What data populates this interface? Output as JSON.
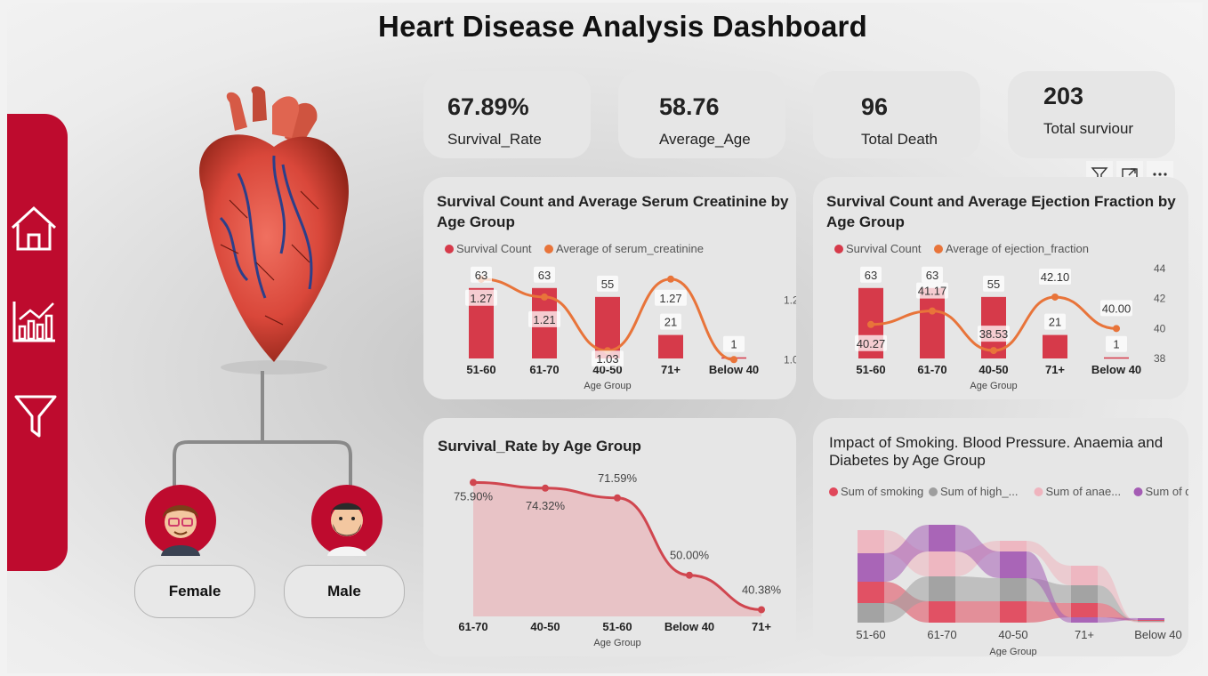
{
  "header": {
    "title": "Heart Disease Analysis Dashboard"
  },
  "sidebar": {
    "items": [
      {
        "icon": "home-icon"
      },
      {
        "icon": "bar-chart-icon"
      },
      {
        "icon": "filter-icon"
      }
    ]
  },
  "kpis": [
    {
      "value": "67.89%",
      "label": "Survival_Rate"
    },
    {
      "value": "58.76",
      "label": "Average_Age"
    },
    {
      "value": "96",
      "label": "Total Death"
    },
    {
      "value": "203",
      "label": "Total surviour"
    }
  ],
  "gender": {
    "female_label": "Female",
    "male_label": "Male"
  },
  "visual_toolbar": {
    "icons": [
      "filter-icon",
      "focus-mode-icon",
      "more-options-icon"
    ]
  },
  "colors": {
    "brand": "#be0b2e",
    "bar": "#d63a4a",
    "line": "#e8743a",
    "card": "#e6e6e6"
  },
  "chart_data": [
    {
      "type": "bar",
      "title": "Survival Count and Average Serum Creatinine by Age Group",
      "xlabel": "Age Group",
      "categories": [
        "51-60",
        "61-70",
        "40-50",
        "71+",
        "Below 40"
      ],
      "series": [
        {
          "name": "Survival Count",
          "type": "bar",
          "values": [
            63,
            63,
            55,
            21,
            1
          ],
          "color": "#d63a4a"
        },
        {
          "name": "Average of serum_creatinine",
          "type": "line",
          "values": [
            1.27,
            1.21,
            1.03,
            1.27,
            1.0
          ],
          "labels": [
            "1.27",
            "1.21",
            "1.03",
            "1.27",
            ""
          ],
          "color": "#e8743a"
        }
      ],
      "y2_ticks": [
        "1.2",
        "1.0"
      ],
      "legend": "top-left"
    },
    {
      "type": "bar",
      "title": "Survival Count and Average Ejection Fraction by Age Group",
      "xlabel": "Age Group",
      "categories": [
        "51-60",
        "61-70",
        "40-50",
        "71+",
        "Below 40"
      ],
      "series": [
        {
          "name": "Survival Count",
          "type": "bar",
          "values": [
            63,
            63,
            55,
            21,
            1
          ],
          "color": "#d63a4a"
        },
        {
          "name": "Average of ejection_fraction",
          "type": "line",
          "values": [
            40.27,
            41.17,
            38.53,
            42.1,
            40.0
          ],
          "labels": [
            "40.27",
            "41.17",
            "38.53",
            "42.10",
            "40.00"
          ],
          "color": "#e8743a"
        }
      ],
      "y2_ticks": [
        "44",
        "42",
        "40",
        "38"
      ],
      "y2lim": [
        38,
        44
      ],
      "legend": "top-left"
    },
    {
      "type": "area",
      "title": "Survival_Rate by Age Group",
      "xlabel": "Age Group",
      "categories": [
        "61-70",
        "40-50",
        "51-60",
        "Below 40",
        "71+"
      ],
      "values": [
        75.9,
        74.32,
        71.59,
        50.0,
        40.38
      ],
      "labels": [
        "75.90%",
        "74.32%",
        "71.59%",
        "50.00%",
        "40.38%"
      ],
      "color": "#d0464f"
    },
    {
      "type": "area",
      "subtype": "ribbon",
      "title": "Impact of Smoking. Blood Pressure. Anaemia and Diabetes by Age Group",
      "xlabel": "Age Group",
      "categories": [
        "51-60",
        "61-70",
        "40-50",
        "71+",
        "Below 40"
      ],
      "series": [
        {
          "name": "Sum of smoking",
          "color": "#e0475a"
        },
        {
          "name": "Sum of high_...",
          "color": "#9e9e9e"
        },
        {
          "name": "Sum of anae...",
          "color": "#efb4be"
        },
        {
          "name": "Sum of dia...",
          "color": "#a45cb4"
        }
      ],
      "legend": "top-left"
    }
  ]
}
